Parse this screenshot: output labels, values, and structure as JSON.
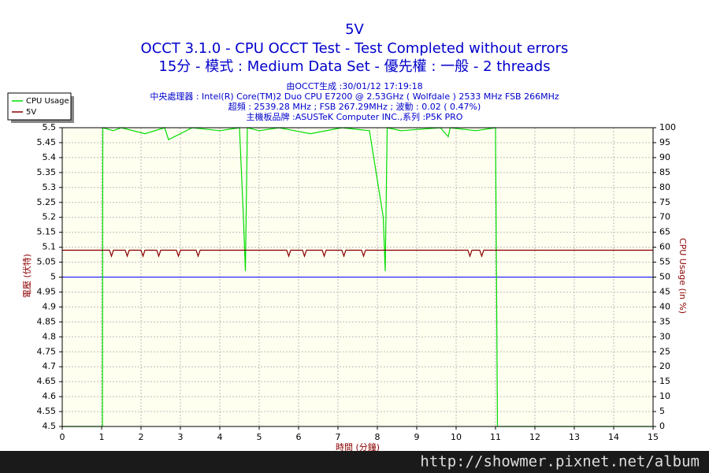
{
  "chart_data": {
    "type": "line",
    "title": "5V",
    "subtitle": [
      "OCCT 3.1.0 - CPU OCCT Test - Test Completed without errors",
      "15分 - 模式 : Medium Data Set - 優先權 : 一般 - 2 threads"
    ],
    "info": [
      "由OCCT生成 :30/01/12 17:19:18",
      "中央處理器 : Intel(R) Core(TM)2 Duo CPU E7200 @ 2.53GHz ( Wolfdale ) 2533 MHz FSB 266MHz",
      "超頻 : 2539.28 MHz ; FSB 267.29MHz ; 波動 : 0.02 ( 0.47%)",
      "主機板品牌 :ASUSTeK Computer INC.,系列 :P5K PRO"
    ],
    "xlabel": "時間 (分鐘)",
    "ylabel": "電壓 (伏特)",
    "y2label": "CPU Usage (in %)",
    "xlim": [
      0,
      15
    ],
    "xticks": [
      0,
      1,
      2,
      3,
      4,
      5,
      6,
      7,
      8,
      9,
      10,
      11,
      12,
      13,
      14,
      15
    ],
    "ylim": [
      4.5,
      5.5
    ],
    "yticks": [
      4.5,
      4.55,
      4.6,
      4.65,
      4.7,
      4.75,
      4.8,
      4.85,
      4.9,
      4.95,
      5,
      5.05,
      5.1,
      5.15,
      5.2,
      5.25,
      5.3,
      5.35,
      5.4,
      5.45,
      5.5
    ],
    "y2lim": [
      0,
      100
    ],
    "y2ticks": [
      0,
      5,
      10,
      15,
      20,
      25,
      30,
      35,
      40,
      45,
      50,
      55,
      60,
      65,
      70,
      75,
      80,
      85,
      90,
      95,
      100
    ],
    "grid": true,
    "legend": "top-left",
    "reference_line": {
      "value": 5,
      "color": "#0000ff"
    },
    "series": [
      {
        "name": "CPU Usage",
        "color": "#00dd00",
        "axis": "y2",
        "x": [
          0,
          1.02,
          1.03,
          1.3,
          1.5,
          2.1,
          2.6,
          2.7,
          3.3,
          4.0,
          4.5,
          4.6,
          4.65,
          4.7,
          5.0,
          5.5,
          6.3,
          7.1,
          7.8,
          8.15,
          8.2,
          8.25,
          8.6,
          9.6,
          9.8,
          9.85,
          10.5,
          11.0,
          11.05,
          15
        ],
        "values": [
          0,
          0,
          100,
          99,
          100,
          98,
          100,
          96,
          100,
          99,
          100,
          70,
          52,
          100,
          99,
          100,
          98,
          100,
          99,
          70,
          52,
          100,
          99,
          100,
          97,
          100,
          99,
          100,
          0,
          0
        ]
      },
      {
        "name": "5V",
        "color": "#8b0000",
        "x": [
          0,
          1.2,
          1.25,
          1.3,
          1.6,
          1.65,
          1.7,
          2.0,
          2.05,
          2.1,
          2.4,
          2.45,
          2.5,
          2.9,
          2.95,
          3.0,
          3.4,
          3.45,
          3.5,
          5.7,
          5.75,
          5.8,
          6.1,
          6.15,
          6.2,
          6.6,
          6.65,
          6.7,
          7.1,
          7.15,
          7.2,
          7.6,
          7.65,
          7.7,
          10.3,
          10.35,
          10.4,
          10.6,
          10.65,
          10.7,
          15
        ],
        "values": [
          5.09,
          5.09,
          5.07,
          5.09,
          5.09,
          5.07,
          5.09,
          5.09,
          5.07,
          5.09,
          5.09,
          5.07,
          5.09,
          5.09,
          5.07,
          5.09,
          5.09,
          5.07,
          5.09,
          5.09,
          5.07,
          5.09,
          5.09,
          5.07,
          5.09,
          5.09,
          5.07,
          5.09,
          5.09,
          5.07,
          5.09,
          5.09,
          5.07,
          5.09,
          5.09,
          5.07,
          5.09,
          5.09,
          5.07,
          5.09,
          5.09
        ]
      }
    ]
  },
  "footer": "http://showmer.pixnet.net/album"
}
